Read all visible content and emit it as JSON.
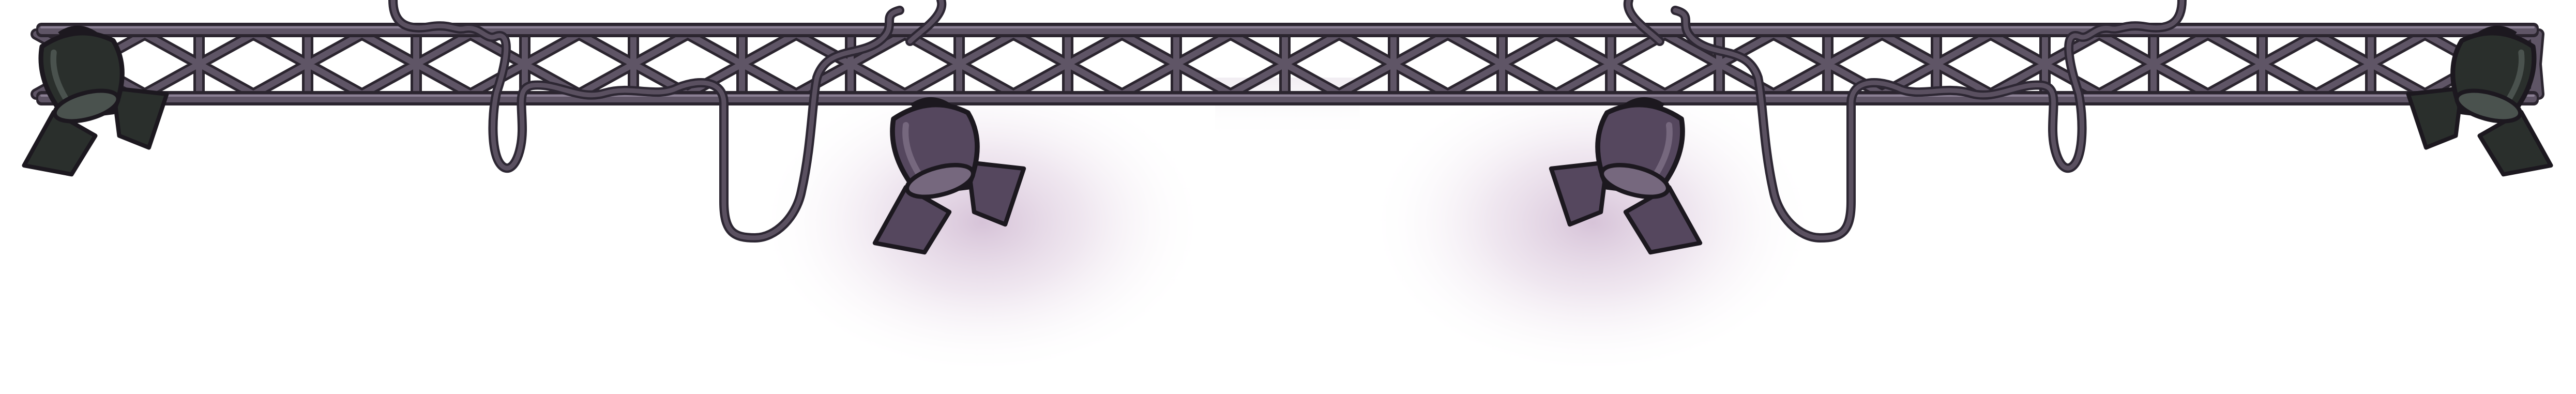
{
  "scene": {
    "name": "stage-lighting-truss",
    "colors": {
      "truss_fill": "#5f5566",
      "truss_outline": "#2b252f",
      "truss_highlight": "#8b8094",
      "cable": "#5a5060",
      "cable_outline": "#2d2733",
      "lamp_dark": "#2a2f2c",
      "lamp_dark_highlight": "#4a524e",
      "lamp_purple": "#55475e",
      "lamp_purple_highlight": "#76687e",
      "glow": "#b592b8"
    },
    "lamps": [
      {
        "name": "left-end-spotlight",
        "style": "dark"
      },
      {
        "name": "center-left-spotlight",
        "style": "purple"
      },
      {
        "name": "center-right-spotlight",
        "style": "purple"
      },
      {
        "name": "right-end-spotlight",
        "style": "dark"
      }
    ]
  }
}
